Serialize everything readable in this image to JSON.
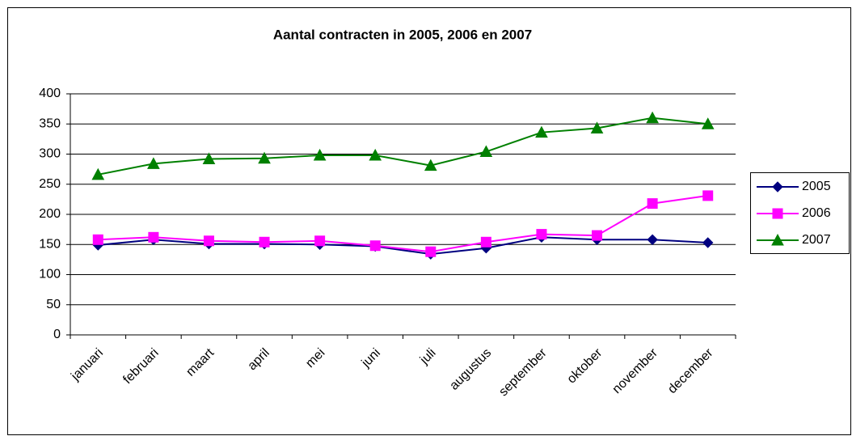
{
  "chart_data": {
    "type": "line",
    "title": "Aantal contracten in 2005, 2006 en 2007",
    "categories": [
      "januari",
      "februari",
      "maart",
      "april",
      "mei",
      "juni",
      "juli",
      "augustus",
      "september",
      "oktober",
      "november",
      "december"
    ],
    "series": [
      {
        "name": "2005",
        "color": "#000080",
        "marker": "diamond",
        "values": [
          149,
          158,
          151,
          151,
          150,
          147,
          134,
          144,
          162,
          158,
          158,
          153
        ]
      },
      {
        "name": "2006",
        "color": "#ff00ff",
        "marker": "square",
        "values": [
          158,
          162,
          156,
          154,
          156,
          148,
          138,
          154,
          167,
          165,
          218,
          231
        ]
      },
      {
        "name": "2007",
        "color": "#008000",
        "marker": "triangle",
        "values": [
          266,
          284,
          292,
          293,
          298,
          298,
          281,
          304,
          336,
          343,
          360,
          350
        ]
      }
    ],
    "ylim": [
      0,
      400
    ],
    "yticks": [
      0,
      50,
      100,
      150,
      200,
      250,
      300,
      350,
      400
    ],
    "grid": true,
    "legend": "right"
  }
}
